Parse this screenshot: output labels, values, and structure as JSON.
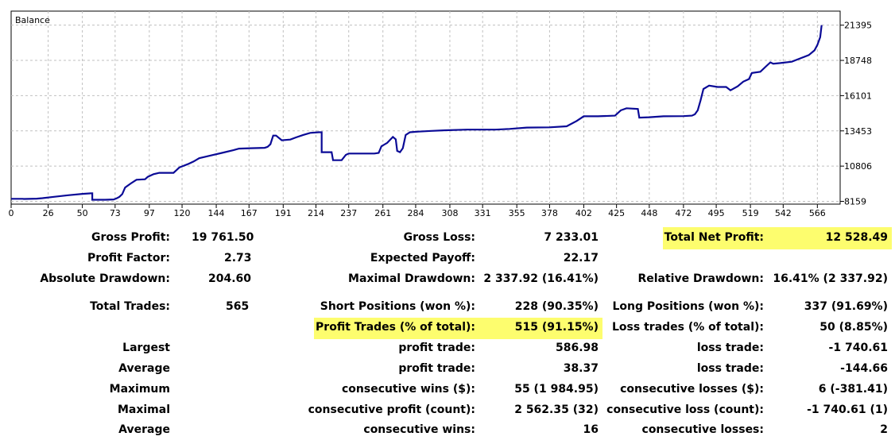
{
  "chart_data": {
    "type": "line",
    "title": "Balance",
    "series": [
      {
        "name": "Balance",
        "color": "#0a0a96",
        "points": [
          [
            0,
            8350
          ],
          [
            8,
            8350
          ],
          [
            9,
            8340
          ],
          [
            18,
            8360
          ],
          [
            22,
            8400
          ],
          [
            30,
            8500
          ],
          [
            40,
            8620
          ],
          [
            50,
            8720
          ],
          [
            56,
            8760
          ],
          [
            57,
            8760
          ],
          [
            57,
            8280
          ],
          [
            66,
            8280
          ],
          [
            72,
            8300
          ],
          [
            74,
            8380
          ],
          [
            76,
            8500
          ],
          [
            78,
            8700
          ],
          [
            80,
            9200
          ],
          [
            84,
            9500
          ],
          [
            88,
            9780
          ],
          [
            94,
            9820
          ],
          [
            96,
            10000
          ],
          [
            100,
            10200
          ],
          [
            104,
            10300
          ],
          [
            114,
            10300
          ],
          [
            116,
            10500
          ],
          [
            118,
            10700
          ],
          [
            124,
            10950
          ],
          [
            128,
            11150
          ],
          [
            132,
            11400
          ],
          [
            140,
            11600
          ],
          [
            148,
            11800
          ],
          [
            156,
            12000
          ],
          [
            160,
            12120
          ],
          [
            168,
            12150
          ],
          [
            178,
            12180
          ],
          [
            180,
            12250
          ],
          [
            182,
            12450
          ],
          [
            184,
            13100
          ],
          [
            186,
            13100
          ],
          [
            190,
            12750
          ],
          [
            196,
            12800
          ],
          [
            200,
            12960
          ],
          [
            205,
            13150
          ],
          [
            210,
            13300
          ],
          [
            216,
            13350
          ],
          [
            218,
            13350
          ],
          [
            218,
            11850
          ],
          [
            225,
            11850
          ],
          [
            226,
            11250
          ],
          [
            232,
            11250
          ],
          [
            235,
            11650
          ],
          [
            237,
            11750
          ],
          [
            245,
            11750
          ],
          [
            255,
            11750
          ],
          [
            258,
            11800
          ],
          [
            260,
            12300
          ],
          [
            264,
            12550
          ],
          [
            268,
            13000
          ],
          [
            270,
            12820
          ],
          [
            271,
            11950
          ],
          [
            273,
            11850
          ],
          [
            275,
            12150
          ],
          [
            277,
            13150
          ],
          [
            280,
            13350
          ],
          [
            286,
            13400
          ],
          [
            295,
            13450
          ],
          [
            305,
            13500
          ],
          [
            320,
            13550
          ],
          [
            340,
            13550
          ],
          [
            350,
            13600
          ],
          [
            362,
            13700
          ],
          [
            378,
            13720
          ],
          [
            390,
            13800
          ],
          [
            397,
            14200
          ],
          [
            402,
            14550
          ],
          [
            412,
            14550
          ],
          [
            424,
            14600
          ],
          [
            428,
            15000
          ],
          [
            432,
            15150
          ],
          [
            440,
            15100
          ],
          [
            441,
            14450
          ],
          [
            448,
            14480
          ],
          [
            458,
            14550
          ],
          [
            472,
            14560
          ],
          [
            478,
            14600
          ],
          [
            480,
            14700
          ],
          [
            482,
            15000
          ],
          [
            484,
            15750
          ],
          [
            486,
            16600
          ],
          [
            490,
            16850
          ],
          [
            496,
            16750
          ],
          [
            502,
            16750
          ],
          [
            505,
            16500
          ],
          [
            510,
            16800
          ],
          [
            514,
            17150
          ],
          [
            518,
            17350
          ],
          [
            520,
            17800
          ],
          [
            526,
            17900
          ],
          [
            530,
            18300
          ],
          [
            533,
            18600
          ],
          [
            535,
            18500
          ],
          [
            540,
            18550
          ],
          [
            548,
            18650
          ],
          [
            554,
            18900
          ],
          [
            560,
            19150
          ],
          [
            564,
            19500
          ],
          [
            566,
            19900
          ],
          [
            568,
            20500
          ],
          [
            569,
            21400
          ]
        ]
      }
    ],
    "xlim": [
      0,
      582
    ],
    "ylim": [
      7950,
      22450
    ],
    "x_ticks": [
      0,
      26,
      50,
      73,
      97,
      120,
      144,
      167,
      191,
      214,
      237,
      261,
      284,
      308,
      331,
      355,
      378,
      402,
      425,
      448,
      472,
      495,
      519,
      542,
      566
    ],
    "y_ticks": [
      8159,
      10806,
      13453,
      16101,
      18748,
      21395
    ],
    "grid": true
  },
  "report": {
    "gross_profit": {
      "label": "Gross Profit:",
      "value": "19 761.50"
    },
    "gross_loss": {
      "label": "Gross Loss:",
      "value": "7 233.01"
    },
    "total_net_profit": {
      "label": "Total Net Profit:",
      "value": "12 528.49"
    },
    "profit_factor": {
      "label": "Profit Factor:",
      "value": "2.73"
    },
    "expected_payoff": {
      "label": "Expected Payoff:",
      "value": "22.17"
    },
    "absolute_drawdown": {
      "label": "Absolute Drawdown:",
      "value": "204.60"
    },
    "maximal_drawdown": {
      "label": "Maximal Drawdown:",
      "value": "2 337.92 (16.41%)"
    },
    "relative_drawdown": {
      "label": "Relative Drawdown:",
      "value": "16.41% (2 337.92)"
    },
    "total_trades": {
      "label": "Total Trades:",
      "value": "565"
    },
    "short_positions": {
      "label": "Short Positions (won %):",
      "value": "228 (90.35%)"
    },
    "long_positions": {
      "label": "Long Positions (won %):",
      "value": "337 (91.69%)"
    },
    "profit_trades": {
      "label": "Profit Trades (% of total):",
      "value": "515 (91.15%)"
    },
    "loss_trades": {
      "label": "Loss trades (% of total):",
      "value": "50 (8.85%)"
    },
    "largest": {
      "label": "Largest",
      "profit_label": "profit trade:",
      "profit_value": "586.98",
      "loss_label": "loss trade:",
      "loss_value": "-1 740.61"
    },
    "average": {
      "label": "Average",
      "profit_label": "profit trade:",
      "profit_value": "38.37",
      "loss_label": "loss trade:",
      "loss_value": "-144.66"
    },
    "maximum": {
      "label": "Maximum",
      "profit_label": "consecutive wins ($):",
      "profit_value": "55 (1 984.95)",
      "loss_label": "consecutive losses ($):",
      "loss_value": "6 (-381.41)"
    },
    "maximal": {
      "label": "Maximal",
      "profit_label": "consecutive profit (count):",
      "profit_value": "2 562.35 (32)",
      "loss_label": "consecutive loss (count):",
      "loss_value": "-1 740.61 (1)"
    },
    "average2": {
      "label": "Average",
      "profit_label": "consecutive wins:",
      "profit_value": "16",
      "loss_label": "consecutive losses:",
      "loss_value": "2"
    }
  }
}
